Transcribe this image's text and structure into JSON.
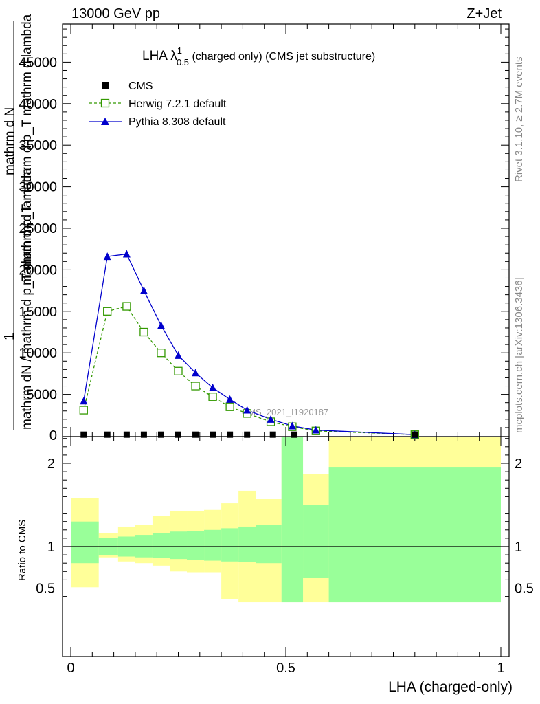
{
  "header": {
    "left": "13000 GeV pp",
    "right": "Z+Jet"
  },
  "side_text": {
    "rivet": "Rivet 3.1.10, ≥ 2.7M events",
    "mcplots": "mcplots.cern.ch [arXiv:1306.3436]"
  },
  "watermark": "CMS_2021_I1920187",
  "main_title": {
    "prefix": "LHA λ",
    "sup": "1",
    "sub": "0.5",
    "suffix": " (charged only) (CMS jet substructure)"
  },
  "y_axis_label": {
    "line1": "mathrm dN / mathrm d p_T mathrm d lambda",
    "line2": "mathrm d N",
    "line3": "mathrm d p_T mathrm d p_T mathrm d lambda",
    "one": "1"
  },
  "ratio_ylabel": "Ratio to CMS",
  "xlabel": "LHA (charged-only)",
  "legend": [
    {
      "label": "CMS",
      "color": "#000000"
    },
    {
      "label": "Herwig 7.2.1 default",
      "color": "#339900"
    },
    {
      "label": "Pythia 8.308 default",
      "color": "#0000cc"
    }
  ],
  "chart_data": [
    {
      "type": "line",
      "panel": "main",
      "xlim": [
        0,
        1
      ],
      "ylim": [
        0,
        50000
      ],
      "yticks": [
        5000,
        10000,
        15000,
        20000,
        25000,
        30000,
        35000,
        40000,
        45000
      ],
      "ytick_labels": [
        "5000",
        "10000",
        "15000",
        "20000",
        "25000",
        "30000",
        "35000",
        "40000",
        "45000"
      ],
      "series": [
        {
          "name": "CMS",
          "color": "#000000",
          "x": [
            0.03,
            0.085,
            0.13,
            0.17,
            0.21,
            0.25,
            0.29,
            0.33,
            0.37,
            0.41,
            0.47,
            0.52,
            0.8
          ],
          "values": [
            150,
            150,
            150,
            150,
            150,
            150,
            150,
            150,
            150,
            150,
            150,
            150,
            150
          ]
        },
        {
          "name": "Herwig 7.2.1 default",
          "color": "#339900",
          "x": [
            0.03,
            0.085,
            0.13,
            0.17,
            0.21,
            0.25,
            0.29,
            0.33,
            0.37,
            0.41,
            0.465,
            0.515,
            0.57,
            0.8
          ],
          "values": [
            3100,
            15000,
            15600,
            12500,
            10000,
            7800,
            6000,
            4700,
            3500,
            2700,
            1700,
            1100,
            600,
            150
          ]
        },
        {
          "name": "Pythia 8.308 default",
          "color": "#0000cc",
          "x": [
            0.03,
            0.085,
            0.13,
            0.17,
            0.21,
            0.25,
            0.29,
            0.33,
            0.37,
            0.41,
            0.465,
            0.515,
            0.57,
            0.8
          ],
          "values": [
            4200,
            21600,
            21900,
            17500,
            13300,
            9700,
            7600,
            5800,
            4400,
            3100,
            2000,
            1200,
            700,
            150
          ]
        }
      ]
    },
    {
      "type": "area",
      "panel": "ratio",
      "xlim": [
        0,
        1
      ],
      "ylim": [
        0.33,
        2.33
      ],
      "yticks": [
        0.5,
        1,
        2
      ],
      "ytick_labels": [
        "0.5",
        "1",
        "2"
      ],
      "xticks": [
        0,
        0.5,
        1
      ],
      "xtick_labels": [
        "0",
        "0.5",
        "1"
      ],
      "reference_line": 1,
      "bands": {
        "edges": [
          0,
          0.065,
          0.11,
          0.15,
          0.19,
          0.23,
          0.27,
          0.31,
          0.35,
          0.39,
          0.43,
          0.49,
          0.54,
          0.6,
          1.0
        ],
        "bins_drawn": [
          [
            0.0,
            0.065
          ],
          [
            0.065,
            0.11
          ],
          [
            0.11,
            0.15
          ],
          [
            0.15,
            0.19
          ],
          [
            0.19,
            0.23
          ],
          [
            0.23,
            0.27
          ],
          [
            0.27,
            0.31
          ],
          [
            0.31,
            0.35
          ],
          [
            0.35,
            0.39
          ],
          [
            0.39,
            0.43
          ],
          [
            0.43,
            0.49
          ],
          [
            0.49,
            0.54
          ],
          [
            0.54,
            0.6
          ],
          [
            0.6,
            1.0
          ]
        ],
        "green_lo": [
          0.8,
          0.9,
          0.88,
          0.87,
          0.86,
          0.85,
          0.84,
          0.83,
          0.82,
          0.81,
          0.8,
          0.33,
          0.62,
          0.33
        ],
        "green_hi": [
          1.3,
          1.1,
          1.12,
          1.14,
          1.16,
          1.18,
          1.19,
          1.2,
          1.22,
          1.24,
          1.26,
          2.33,
          1.5,
          1.95
        ],
        "yellow_lo": [
          0.51,
          0.87,
          0.82,
          0.8,
          0.77,
          0.7,
          0.69,
          0.69,
          0.37,
          0.33,
          0.33,
          0.33,
          0.33,
          0.33
        ],
        "yellow_hi": [
          1.58,
          1.16,
          1.24,
          1.26,
          1.37,
          1.43,
          1.43,
          1.44,
          1.52,
          1.67,
          1.57,
          2.33,
          1.87,
          2.33
        ]
      }
    }
  ]
}
